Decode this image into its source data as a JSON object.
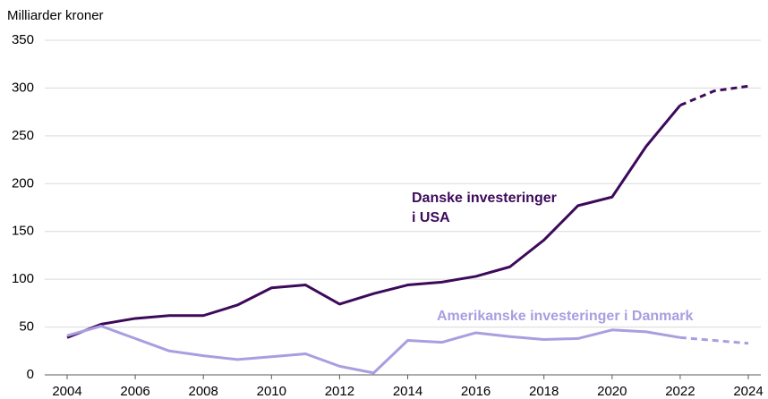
{
  "chart_data": {
    "type": "line",
    "ylabel": "Milliarder kroner",
    "x": [
      2004,
      2005,
      2006,
      2007,
      2008,
      2009,
      2010,
      2011,
      2012,
      2013,
      2014,
      2015,
      2016,
      2017,
      2018,
      2019,
      2020,
      2021,
      2022,
      2023,
      2024
    ],
    "series": [
      {
        "name": [
          "Danske investeringer",
          "i USA"
        ],
        "color": "#3d0a5b",
        "values": [
          39,
          53,
          59,
          62,
          62,
          73,
          91,
          94,
          74,
          85,
          94,
          97,
          103,
          113,
          141,
          177,
          186,
          239,
          282,
          297,
          302
        ]
      },
      {
        "name": [
          "Amerikanske investeringer i Danmark"
        ],
        "color": "#a99ee0",
        "values": [
          41,
          51,
          38,
          25,
          20,
          16,
          19,
          22,
          9,
          2,
          36,
          34,
          44,
          40,
          37,
          38,
          47,
          45,
          39,
          36,
          33
        ]
      }
    ],
    "dashed_from_x": 2022,
    "xlim": [
      2004,
      2024
    ],
    "xticks": [
      2004,
      2006,
      2008,
      2010,
      2012,
      2014,
      2016,
      2018,
      2020,
      2022,
      2024
    ],
    "ylim": [
      0,
      350
    ],
    "yticks": [
      0,
      50,
      100,
      150,
      200,
      250,
      300,
      350
    ],
    "grid": true
  }
}
